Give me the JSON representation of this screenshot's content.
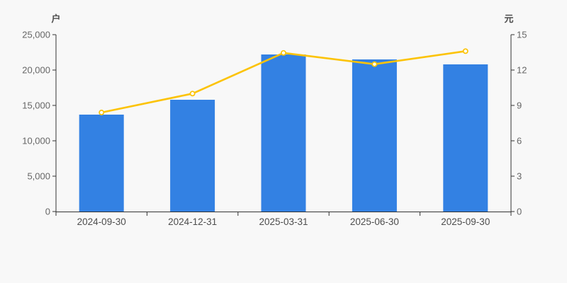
{
  "page": {
    "background_color": "#f8f8f8"
  },
  "chart_data": {
    "type": "bar+line",
    "title": "",
    "legend": false,
    "grid": false,
    "categories": [
      "2024-09-30",
      "2024-12-31",
      "2025-03-31",
      "2025-06-30",
      "2025-09-30"
    ],
    "series": [
      {
        "id": "bar-series",
        "type": "bar",
        "axis": "left",
        "color": "#3381e3",
        "values": [
          13700,
          15800,
          22200,
          21500,
          20800
        ]
      },
      {
        "id": "line-series",
        "type": "line",
        "axis": "right",
        "color": "#fcc306",
        "marker": "hollow-circle",
        "marker_fill": "#ffffff",
        "values": [
          8.4,
          10.0,
          13.45,
          12.5,
          13.6
        ]
      }
    ],
    "left_axis": {
      "title": "户",
      "min": 0,
      "max": 25000,
      "step": 5000,
      "tick_labels": [
        "0",
        "5,000",
        "10,000",
        "15,000",
        "20,000",
        "25,000"
      ]
    },
    "right_axis": {
      "title": "元",
      "min": 0,
      "max": 15,
      "step": 3,
      "tick_labels": [
        "0",
        "3",
        "6",
        "9",
        "12",
        "15"
      ]
    },
    "axis_color": "#333333",
    "tick_label_color": "#666666",
    "category_label_color": "#4d4d4d"
  }
}
